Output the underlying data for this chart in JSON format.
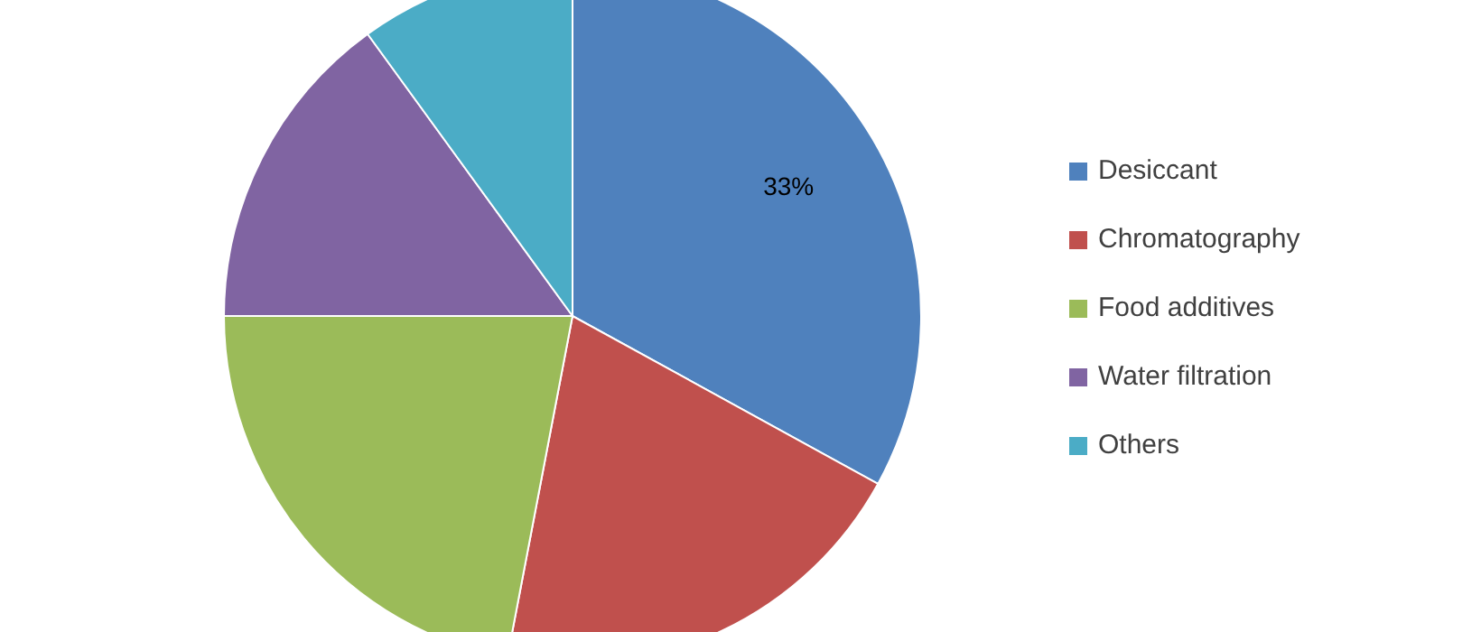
{
  "chart_data": {
    "type": "pie",
    "categories": [
      "Desiccant",
      "Chromatography",
      "Food additives",
      "Water filtration",
      "Others"
    ],
    "values": [
      33,
      20,
      22,
      15,
      10
    ],
    "colors": [
      "#4f81bd",
      "#c0504d",
      "#9bbb59",
      "#8064a2",
      "#4bacc6"
    ],
    "value_labels": [
      "33%",
      null,
      null,
      null,
      null
    ],
    "legend": "right"
  }
}
